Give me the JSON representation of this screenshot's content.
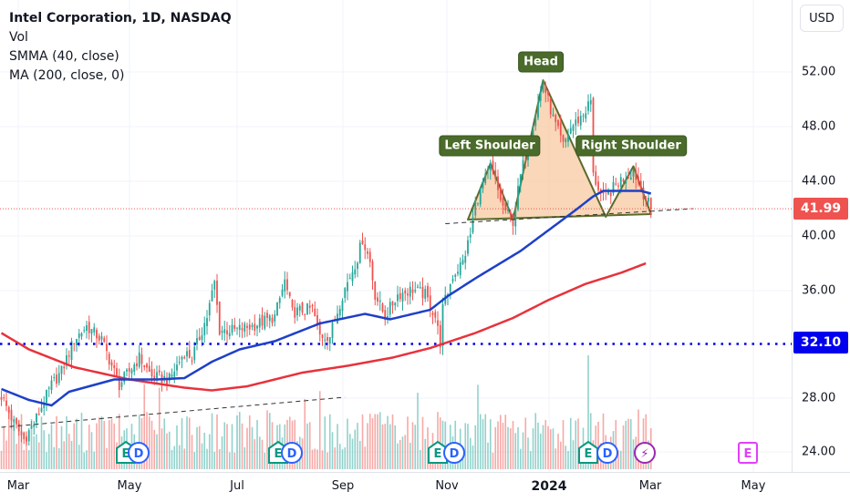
{
  "legend": {
    "title": "Intel Corporation, 1D, NASDAQ",
    "vol": "Vol",
    "smma": "SMMA (40, close)",
    "ma": "MA (200, close, 0)"
  },
  "currency": "USD",
  "price_labels": {
    "last": "41.99",
    "level": "32.10"
  },
  "pattern_labels": {
    "left": "Left Shoulder",
    "head": "Head",
    "right": "Right Shoulder"
  },
  "event_badges": [
    "E",
    "D",
    "E",
    "D",
    "E",
    "D",
    "E",
    "D",
    "⚡",
    "E"
  ],
  "colors": {
    "up": "#26a69a",
    "down": "#ef5350",
    "smma": "#1e40c8",
    "ma": "#e8323c",
    "level": "#0000ee",
    "last": "#ef5350",
    "pattern_fill": "#f7c9a0",
    "pattern_stroke": "#5b6b2a",
    "label_bg": "#4a6b2a"
  },
  "chart_data": {
    "type": "candlestick",
    "title": "Intel Corporation, 1D, NASDAQ",
    "y_ticks": [
      "52.00",
      "48.00",
      "44.00",
      "40.00",
      "36.00",
      "28.00",
      "24.00"
    ],
    "x_ticks": [
      "Mar",
      "May",
      "Jul",
      "Sep",
      "Nov",
      "2024",
      "Mar",
      "May"
    ],
    "ylim": [
      22.5,
      55
    ],
    "last_price": 41.99,
    "horizontal_level": 32.1,
    "price_path": [
      [
        0,
        28.3
      ],
      [
        5,
        26.3
      ],
      [
        9,
        25.1
      ],
      [
        13,
        26.3
      ],
      [
        20,
        29.1
      ],
      [
        24,
        30.1
      ],
      [
        29,
        32.4
      ],
      [
        34,
        33.4
      ],
      [
        40,
        32.4
      ],
      [
        47,
        29.1
      ],
      [
        55,
        31.1
      ],
      [
        60,
        29.7
      ],
      [
        67,
        29.5
      ],
      [
        73,
        31.5
      ],
      [
        76,
        31.1
      ],
      [
        82,
        34.1
      ],
      [
        85,
        36.6
      ],
      [
        87,
        33.1
      ],
      [
        93,
        33.1
      ],
      [
        100,
        33.4
      ],
      [
        109,
        34.1
      ],
      [
        113,
        36.7
      ],
      [
        116,
        34.4
      ],
      [
        124,
        34.7
      ],
      [
        127,
        32.7
      ],
      [
        131,
        32.7
      ],
      [
        136,
        35.7
      ],
      [
        142,
        38.4
      ],
      [
        144,
        39.8
      ],
      [
        147,
        38.1
      ],
      [
        149,
        35.7
      ],
      [
        153,
        34.1
      ],
      [
        158,
        35.7
      ],
      [
        164,
        36.1
      ],
      [
        169,
        35.7
      ],
      [
        173,
        34.1
      ],
      [
        175,
        32.2
      ],
      [
        176,
        34.7
      ],
      [
        180,
        37.1
      ],
      [
        184,
        38.1
      ],
      [
        187,
        40.1
      ],
      [
        189,
        42.4
      ],
      [
        195,
        45.1
      ],
      [
        200,
        42.1
      ],
      [
        204,
        41.1
      ],
      [
        207,
        44.4
      ],
      [
        211,
        47.5
      ],
      [
        216,
        51.2
      ],
      [
        220,
        48.6
      ],
      [
        224,
        46.6
      ],
      [
        227,
        47.9
      ],
      [
        232,
        48.9
      ],
      [
        235,
        49.9
      ],
      [
        236,
        44.4
      ],
      [
        240,
        42.7
      ],
      [
        242,
        43.1
      ],
      [
        247,
        44.1
      ],
      [
        252,
        44.8
      ],
      [
        255,
        43.5
      ],
      [
        259,
        41.99
      ]
    ],
    "smma_40": [
      [
        0,
        28.8
      ],
      [
        11,
        28.0
      ],
      [
        20,
        27.6
      ],
      [
        27,
        28.6
      ],
      [
        45,
        29.5
      ],
      [
        62,
        29.5
      ],
      [
        73,
        29.6
      ],
      [
        84,
        30.8
      ],
      [
        95,
        31.7
      ],
      [
        109,
        32.3
      ],
      [
        127,
        33.6
      ],
      [
        145,
        34.3
      ],
      [
        155,
        33.9
      ],
      [
        171,
        34.6
      ],
      [
        178,
        35.6
      ],
      [
        189,
        36.9
      ],
      [
        198,
        37.9
      ],
      [
        207,
        38.9
      ],
      [
        218,
        40.4
      ],
      [
        229,
        41.9
      ],
      [
        236,
        42.9
      ],
      [
        240,
        43.3
      ],
      [
        255,
        43.3
      ],
      [
        259,
        43.1
      ]
    ],
    "ma_200": [
      [
        0,
        32.9
      ],
      [
        11,
        31.7
      ],
      [
        29,
        30.4
      ],
      [
        51,
        29.5
      ],
      [
        73,
        28.9
      ],
      [
        84,
        28.7
      ],
      [
        98,
        29.0
      ],
      [
        120,
        30.0
      ],
      [
        138,
        30.5
      ],
      [
        156,
        31.1
      ],
      [
        171,
        31.8
      ],
      [
        189,
        32.9
      ],
      [
        204,
        34.0
      ],
      [
        218,
        35.3
      ],
      [
        233,
        36.5
      ],
      [
        247,
        37.3
      ],
      [
        257,
        38.0
      ]
    ],
    "head_and_shoulders": [
      [
        186,
        41.2
      ],
      [
        195,
        45.3
      ],
      [
        204,
        41.2
      ],
      [
        216,
        51.4
      ],
      [
        241,
        41.4
      ],
      [
        252,
        45.1
      ],
      [
        259,
        41.6
      ]
    ],
    "neckline": [
      [
        177,
        40.9
      ],
      [
        276,
        42.0
      ]
    ],
    "trendline": [
      [
        0,
        26.0
      ],
      [
        137,
        28.2
      ]
    ]
  }
}
